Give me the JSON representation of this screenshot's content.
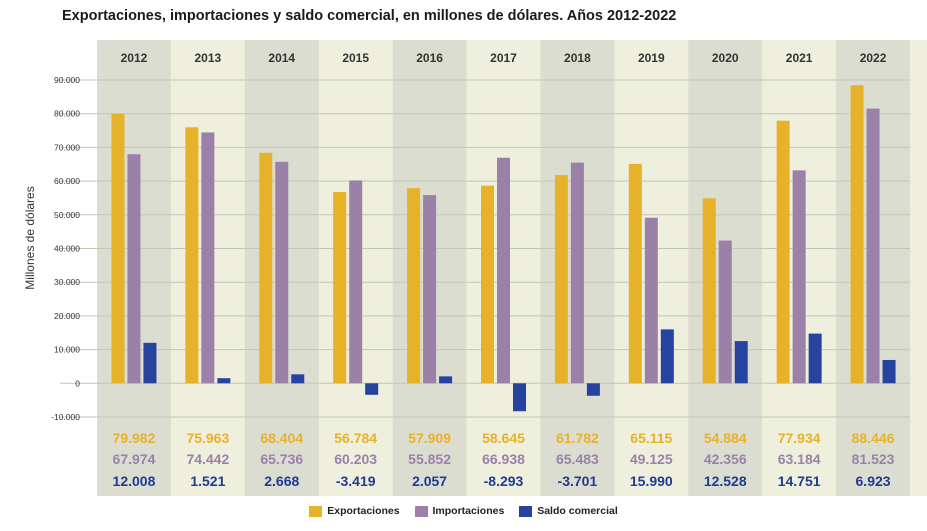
{
  "chart_data": {
    "type": "bar",
    "title": "Exportaciones, importaciones y saldo comercial, en millones de dólares. Años 2012-2022",
    "ylabel": "Millones de dólares",
    "xlabel": "",
    "categories": [
      "2012",
      "2013",
      "2014",
      "2015",
      "2016",
      "2017",
      "2018",
      "2019",
      "2020",
      "2021",
      "2022"
    ],
    "ylim": [
      -10000,
      90000
    ],
    "yticks": [
      {
        "value": 90000,
        "label": "90.000"
      },
      {
        "value": 80000,
        "label": "80.000"
      },
      {
        "value": 70000,
        "label": "70.000"
      },
      {
        "value": 60000,
        "label": "60.000"
      },
      {
        "value": 50000,
        "label": "50.000"
      },
      {
        "value": 40000,
        "label": "40.000"
      },
      {
        "value": 30000,
        "label": "30.000"
      },
      {
        "value": 20000,
        "label": "20.000"
      },
      {
        "value": 10000,
        "label": "10.000"
      },
      {
        "value": 0,
        "label": "0"
      },
      {
        "value": -10000,
        "label": "-10.000"
      }
    ],
    "series": [
      {
        "name": "Exportaciones",
        "color": "#e8b12a",
        "text_color": "#e8b12a",
        "values": [
          79982,
          75963,
          68404,
          56784,
          57909,
          58645,
          61782,
          65115,
          54884,
          77934,
          88446
        ],
        "labels": [
          "79.982",
          "75.963",
          "68.404",
          "56.784",
          "57.909",
          "58.645",
          "61.782",
          "65.115",
          "54.884",
          "77.934",
          "88.446"
        ]
      },
      {
        "name": "Importaciones",
        "color": "#9b80a8",
        "text_color": "#9b80a8",
        "values": [
          67974,
          74442,
          65736,
          60203,
          55852,
          66938,
          65483,
          49125,
          42356,
          63184,
          81523
        ],
        "labels": [
          "67.974",
          "74.442",
          "65.736",
          "60.203",
          "55.852",
          "66.938",
          "65.483",
          "49.125",
          "42.356",
          "63.184",
          "81.523"
        ]
      },
      {
        "name": "Saldo comercial",
        "color": "#2743a0",
        "text_color": "#1f3a93",
        "values": [
          12008,
          1521,
          2668,
          -3419,
          2057,
          -8293,
          -3701,
          15990,
          12528,
          14751,
          6923
        ],
        "labels": [
          "12.008",
          "1.521",
          "2.668",
          "-3.419",
          "2.057",
          "-8.293",
          "-3.701",
          "15.990",
          "12.528",
          "14.751",
          "6.923"
        ]
      }
    ],
    "legend_position": "bottom-center",
    "grid": true
  },
  "colors": {
    "background_panel": "#eef0dd",
    "band_shade": "#dcddd1",
    "gridline": "#c4c6b5"
  }
}
